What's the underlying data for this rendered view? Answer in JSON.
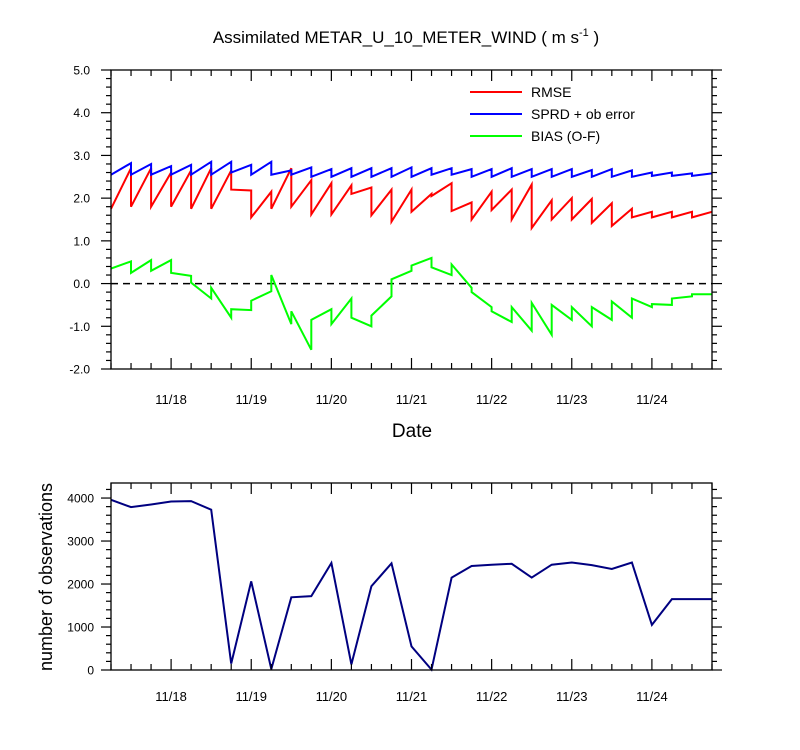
{
  "title_main": "Assimilated METAR_U_10_METER_WIND ( m s",
  "title_sup": "-1",
  "title_end": " )",
  "colors": {
    "rmse": "#ff0000",
    "sprd": "#0000ff",
    "bias": "#00ff00",
    "nobs": "#000080",
    "frame": "#000000"
  },
  "chart_data": [
    {
      "type": "line",
      "xlabel": "Date",
      "ylabel": "",
      "ylim": [
        -2.0,
        5.0
      ],
      "yticks": [
        "5.0",
        "4.0",
        "3.0",
        "2.0",
        "1.0",
        "0.0",
        "-1.0",
        "-2.0"
      ],
      "ytick_values": [
        5,
        4,
        3,
        2,
        1,
        0,
        -1,
        -2
      ],
      "x_tick_labels": [
        "11/18",
        "11/19",
        "11/20",
        "11/21",
        "11/22",
        "11/23",
        "11/24"
      ],
      "x_tick_days": [
        18,
        19,
        20,
        21,
        22,
        23,
        24
      ],
      "x_range_days": [
        17.25,
        24.75
      ],
      "zero_line": "dashed",
      "legend_position": "top-right",
      "series": [
        {
          "name": "RMSE",
          "x": [
            17.25,
            17.5,
            17.5,
            17.75,
            17.75,
            18.0,
            18.0,
            18.25,
            18.25,
            18.5,
            18.5,
            18.75,
            18.75,
            19.0,
            19.0,
            19.25,
            19.25,
            19.5,
            19.5,
            19.75,
            19.75,
            20.0,
            20.0,
            20.25,
            20.25,
            20.5,
            20.5,
            20.75,
            20.75,
            21.0,
            21.0,
            21.25,
            21.25,
            21.5,
            21.5,
            21.75,
            21.75,
            22.0,
            22.0,
            22.25,
            22.25,
            22.5,
            22.5,
            22.75,
            22.75,
            23.0,
            23.0,
            23.25,
            23.25,
            23.5,
            23.5,
            23.75,
            23.75,
            24.0,
            24.0,
            24.25,
            24.25,
            24.5,
            24.5,
            24.75
          ],
          "y": [
            1.75,
            2.7,
            1.8,
            2.7,
            1.8,
            2.6,
            1.8,
            2.65,
            1.75,
            2.7,
            1.75,
            2.65,
            2.2,
            2.18,
            1.55,
            2.15,
            1.75,
            2.7,
            1.8,
            2.42,
            1.62,
            2.35,
            1.62,
            2.3,
            2.1,
            2.25,
            1.6,
            2.2,
            1.45,
            2.2,
            1.68,
            2.1,
            2.05,
            2.35,
            1.7,
            1.9,
            1.5,
            2.15,
            1.72,
            2.2,
            1.5,
            2.32,
            1.3,
            1.95,
            1.5,
            2.0,
            1.5,
            1.98,
            1.42,
            1.88,
            1.35,
            1.75,
            1.55,
            1.68,
            1.55,
            1.68,
            1.55,
            1.68,
            1.55,
            1.68
          ]
        },
        {
          "name": "SPRD + ob error",
          "x": [
            17.25,
            17.5,
            17.5,
            17.75,
            17.75,
            18.0,
            18.0,
            18.25,
            18.25,
            18.5,
            18.5,
            18.75,
            18.75,
            19.0,
            19.0,
            19.25,
            19.25,
            19.5,
            19.5,
            19.75,
            19.75,
            20.0,
            20.0,
            20.25,
            20.25,
            20.5,
            20.5,
            20.75,
            20.75,
            21.0,
            21.0,
            21.25,
            21.25,
            21.5,
            21.5,
            21.75,
            21.75,
            22.0,
            22.0,
            22.25,
            22.25,
            22.5,
            22.5,
            22.75,
            22.75,
            23.0,
            23.0,
            23.25,
            23.25,
            23.5,
            23.5,
            23.75,
            23.75,
            24.0,
            24.0,
            24.25,
            24.25,
            24.5,
            24.5,
            24.75
          ],
          "y": [
            2.55,
            2.82,
            2.55,
            2.8,
            2.55,
            2.75,
            2.55,
            2.78,
            2.55,
            2.85,
            2.55,
            2.85,
            2.6,
            2.78,
            2.55,
            2.85,
            2.55,
            2.65,
            2.55,
            2.72,
            2.5,
            2.68,
            2.5,
            2.7,
            2.5,
            2.7,
            2.5,
            2.7,
            2.5,
            2.72,
            2.5,
            2.7,
            2.55,
            2.7,
            2.55,
            2.68,
            2.5,
            2.68,
            2.5,
            2.7,
            2.5,
            2.68,
            2.5,
            2.68,
            2.5,
            2.68,
            2.5,
            2.66,
            2.5,
            2.68,
            2.5,
            2.65,
            2.5,
            2.6,
            2.52,
            2.6,
            2.52,
            2.58,
            2.52,
            2.58
          ]
        },
        {
          "name": "BIAS (O-F)",
          "x": [
            17.25,
            17.5,
            17.5,
            17.75,
            17.75,
            18.0,
            18.0,
            18.25,
            18.25,
            18.5,
            18.5,
            18.75,
            18.75,
            19.0,
            19.0,
            19.25,
            19.25,
            19.5,
            19.5,
            19.75,
            19.75,
            20.0,
            20.0,
            20.25,
            20.25,
            20.5,
            20.5,
            20.75,
            20.75,
            21.0,
            21.0,
            21.25,
            21.25,
            21.5,
            21.5,
            21.75,
            21.75,
            22.0,
            22.0,
            22.25,
            22.25,
            22.5,
            22.5,
            22.75,
            22.75,
            23.0,
            23.0,
            23.25,
            23.25,
            23.5,
            23.5,
            23.75,
            23.75,
            24.0,
            24.0,
            24.25,
            24.25,
            24.5,
            24.5,
            24.75
          ],
          "y": [
            0.35,
            0.52,
            0.25,
            0.55,
            0.3,
            0.55,
            0.25,
            0.18,
            0.02,
            -0.35,
            -0.1,
            -0.8,
            -0.6,
            -0.62,
            -0.4,
            -0.18,
            0.2,
            -0.95,
            -0.65,
            -1.55,
            -0.85,
            -0.6,
            -0.95,
            -0.35,
            -0.8,
            -1.0,
            -0.75,
            -0.3,
            0.1,
            0.3,
            0.42,
            0.6,
            0.38,
            0.2,
            0.45,
            -0.1,
            -0.2,
            -0.55,
            -0.65,
            -0.9,
            -0.55,
            -1.1,
            -0.45,
            -1.2,
            -0.5,
            -0.85,
            -0.55,
            -1.0,
            -0.55,
            -0.85,
            -0.42,
            -0.8,
            -0.35,
            -0.55,
            -0.48,
            -0.5,
            -0.35,
            -0.3,
            -0.25,
            -0.25
          ]
        }
      ]
    },
    {
      "type": "line",
      "xlabel": "",
      "ylabel": "number of observations",
      "ylim": [
        0,
        4350
      ],
      "yticks": [
        "4000",
        "3000",
        "2000",
        "1000",
        "0"
      ],
      "ytick_values": [
        4000,
        3000,
        2000,
        1000,
        0
      ],
      "x_tick_labels": [
        "11/18",
        "11/19",
        "11/20",
        "11/21",
        "11/22",
        "11/23",
        "11/24"
      ],
      "x_tick_days": [
        18,
        19,
        20,
        21,
        22,
        23,
        24
      ],
      "x_range_days": [
        17.25,
        24.75
      ],
      "series": [
        {
          "x": [
            17.25,
            17.5,
            17.75,
            18.0,
            18.25,
            18.5,
            18.75,
            19.0,
            19.25,
            19.5,
            19.75,
            20.0,
            20.25,
            20.5,
            20.75,
            21.0,
            21.25,
            21.5,
            21.75,
            22.0,
            22.25,
            22.5,
            22.75,
            23.0,
            23.25,
            23.5,
            23.75,
            24.0,
            24.25,
            24.5,
            24.75
          ],
          "y": [
            3960,
            3790,
            3850,
            3920,
            3930,
            3730,
            150,
            2060,
            20,
            1690,
            1720,
            2490,
            130,
            1950,
            2480,
            550,
            10,
            2150,
            2420,
            2450,
            2470,
            2150,
            2450,
            2500,
            2440,
            2350,
            2500,
            1050,
            1650,
            1650,
            1650
          ]
        }
      ]
    }
  ]
}
